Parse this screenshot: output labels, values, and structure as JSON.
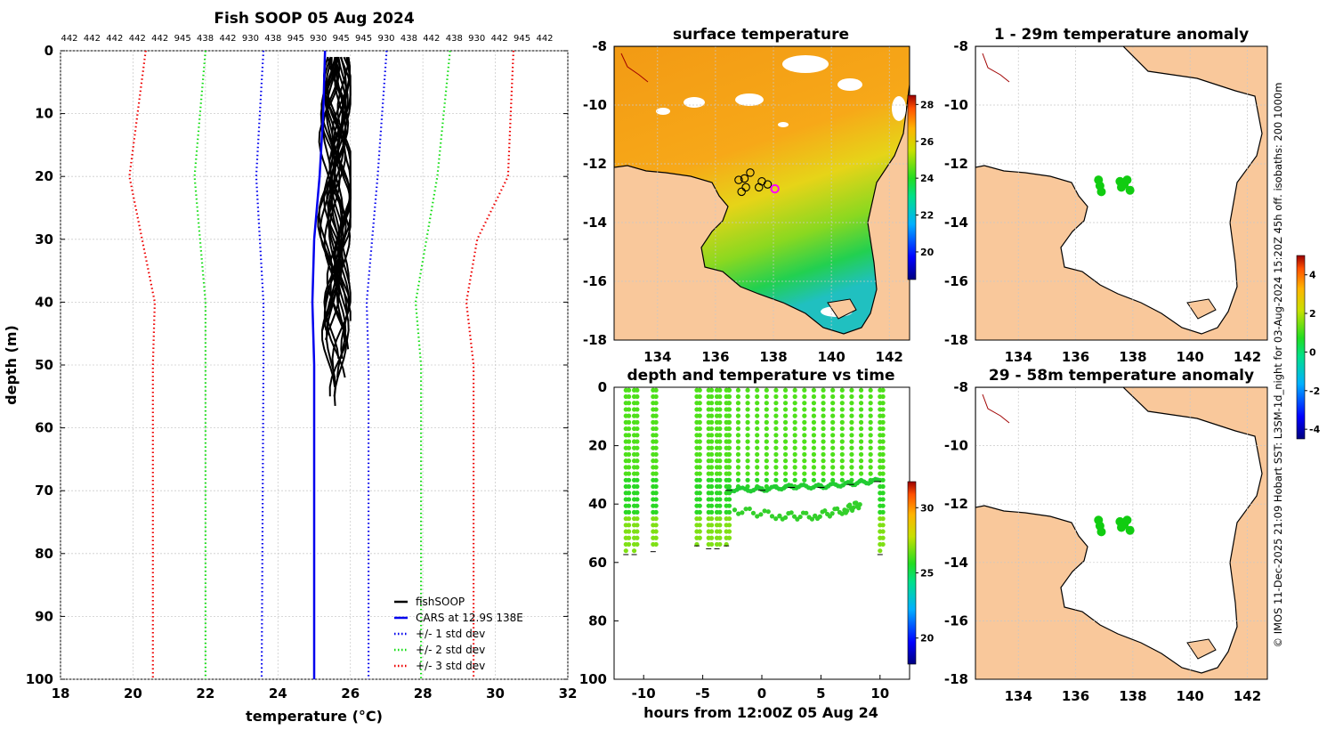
{
  "colors": {
    "fish": "#000000",
    "cars": "#0000ee",
    "std1": "#0000ee",
    "std2": "#11dd11",
    "std3": "#ee0000",
    "land": "#f9c89b",
    "coast": "#000000",
    "grid": "#cccccc",
    "anomaly_obs": "#11cc11",
    "marker": "#ff00ff"
  },
  "chart_data": [
    {
      "id": "profile",
      "type": "line",
      "title": "Fish SOOP 05 Aug 2024",
      "xlabel": "temperature (°C)",
      "ylabel": "depth (m)",
      "xlim": [
        18,
        32
      ],
      "ylim": [
        100,
        0
      ],
      "xticks": [
        "18",
        "20",
        "22",
        "24",
        "26",
        "28",
        "30",
        "32"
      ],
      "yticks": [
        "0",
        "10",
        "20",
        "30",
        "40",
        "50",
        "60",
        "70",
        "80",
        "90",
        "100"
      ],
      "top_labels": [
        "442",
        "442",
        "442",
        "442",
        "442",
        "945",
        "438",
        "442",
        "930",
        "438",
        "945",
        "930",
        "945",
        "945",
        "930",
        "438",
        "442",
        "438",
        "930",
        "442",
        "945",
        "442"
      ],
      "series": [
        {
          "name": "CARS at 12.9S 138E",
          "color_key": "cars",
          "style": "solid",
          "depth": [
            0,
            10,
            20,
            30,
            40,
            50,
            100
          ],
          "temp": [
            25.3,
            25.25,
            25.15,
            25.0,
            24.95,
            25.0,
            25.0
          ]
        },
        {
          "name": "+/- 1 std dev low",
          "color_key": "std1",
          "style": "dot",
          "depth": [
            0,
            20,
            40,
            50,
            100
          ],
          "temp": [
            23.6,
            23.4,
            23.6,
            23.6,
            23.55
          ]
        },
        {
          "name": "+/- 1 std dev high",
          "color_key": "std1",
          "style": "dot",
          "depth": [
            0,
            20,
            40,
            50,
            100
          ],
          "temp": [
            27.0,
            26.75,
            26.45,
            26.5,
            26.5
          ]
        },
        {
          "name": "+/- 2 std dev low",
          "color_key": "std2",
          "style": "dot",
          "depth": [
            0,
            20,
            40,
            50,
            100
          ],
          "temp": [
            22.0,
            21.7,
            22.0,
            22.0,
            22.0
          ]
        },
        {
          "name": "+/- 2 std dev high",
          "color_key": "std2",
          "style": "dot",
          "depth": [
            0,
            20,
            40,
            50,
            100
          ],
          "temp": [
            28.75,
            28.4,
            27.8,
            27.95,
            27.95
          ]
        },
        {
          "name": "+/- 3 std dev low",
          "color_key": "std3",
          "style": "dot",
          "depth": [
            0,
            20,
            40,
            50,
            100
          ],
          "temp": [
            20.35,
            19.9,
            20.6,
            20.55,
            20.55
          ]
        },
        {
          "name": "+/- 3 std dev high",
          "color_key": "std3",
          "style": "dot",
          "depth": [
            0,
            20,
            30,
            40,
            50,
            100
          ],
          "temp": [
            30.5,
            30.35,
            29.5,
            29.2,
            29.4,
            29.4
          ]
        }
      ],
      "fish_depth_range": [
        1,
        58
      ],
      "fish_temp_range": [
        24.95,
        26.0
      ],
      "legend": [
        "fishSOOP",
        "CARS at 12.9S 138E",
        "+/- 1 std dev",
        "+/- 2 std dev",
        "+/- 3 std dev"
      ],
      "legend_position": "bottom-right"
    },
    {
      "id": "sst_map",
      "type": "heatmap",
      "title": "surface temperature",
      "xticks": [
        "134",
        "136",
        "138",
        "140",
        "142"
      ],
      "yticks": [
        "-8",
        "-10",
        "-12",
        "-14",
        "-16",
        "-18"
      ],
      "xlim": [
        132.5,
        142.7
      ],
      "ylim": [
        -18,
        -8
      ],
      "colorbar": {
        "range": [
          18.5,
          28.5
        ],
        "ticks": [
          "20",
          "22",
          "24",
          "26",
          "28"
        ]
      },
      "profile_locations": [
        [
          136.8,
          -12.55
        ],
        [
          136.9,
          -12.95
        ],
        [
          137.05,
          -12.8
        ],
        [
          137.2,
          -12.3
        ],
        [
          137.0,
          -12.5
        ],
        [
          137.6,
          -12.6
        ],
        [
          137.8,
          -12.7
        ],
        [
          137.5,
          -12.8
        ]
      ],
      "latest_location": [
        138.05,
        -12.85
      ]
    },
    {
      "id": "depth_time",
      "type": "scatter",
      "title": "depth and temperature vs time",
      "xlabel": "hours from 12:00Z 05 Aug 24",
      "xticks": [
        "-10",
        "-5",
        "0",
        "5",
        "10"
      ],
      "yticks": [
        "0",
        "20",
        "40",
        "60",
        "80",
        "100"
      ],
      "xlim": [
        -12.5,
        12.5
      ],
      "ylim": [
        100,
        0
      ],
      "colorbar": {
        "range": [
          18,
          32
        ],
        "ticks": [
          "20",
          "25",
          "30"
        ]
      },
      "dives_before": [
        [
          -11.5,
          57
        ],
        [
          -10.8,
          57
        ],
        [
          -9.2,
          56
        ],
        [
          -5.5,
          54
        ],
        [
          -4.5,
          55
        ],
        [
          -3.8,
          55
        ],
        [
          -3.0,
          54
        ],
        [
          10.0,
          57
        ]
      ],
      "dives_bottom": [
        [
          -2.8,
          35
        ],
        [
          0.0,
          35
        ],
        [
          2.5,
          34
        ],
        [
          5.0,
          34
        ],
        [
          7.5,
          33
        ],
        [
          9.8,
          32
        ]
      ],
      "dives_bottom2": [
        [
          -2.3,
          42
        ],
        [
          1.5,
          44
        ],
        [
          4.5,
          44
        ],
        [
          7.0,
          42
        ],
        [
          8.3,
          40
        ]
      ]
    },
    {
      "id": "anom_1",
      "type": "heatmap",
      "title": "1 - 29m temperature anomaly",
      "xticks": [
        "134",
        "136",
        "138",
        "140",
        "142"
      ],
      "yticks": [
        "-8",
        "-10",
        "-12",
        "-14",
        "-16",
        "-18"
      ],
      "xlim": [
        132.5,
        142.7
      ],
      "ylim": [
        -18,
        -8
      ],
      "points": [
        [
          136.8,
          -12.55
        ],
        [
          136.9,
          -12.95
        ],
        [
          136.85,
          -12.75
        ],
        [
          137.55,
          -12.6
        ],
        [
          137.7,
          -12.7
        ],
        [
          137.9,
          -12.9
        ],
        [
          137.6,
          -12.8
        ],
        [
          137.8,
          -12.55
        ]
      ]
    },
    {
      "id": "anom_2",
      "type": "heatmap",
      "title": "29 - 58m temperature anomaly",
      "xticks": [
        "134",
        "136",
        "138",
        "140",
        "142"
      ],
      "yticks": [
        "-8",
        "-10",
        "-12",
        "-14",
        "-16",
        "-18"
      ],
      "xlim": [
        132.5,
        142.7
      ],
      "ylim": [
        -18,
        -8
      ],
      "colorbar": {
        "range": [
          -4.5,
          5
        ],
        "ticks": [
          "4",
          "2",
          "0",
          "-2",
          "-4"
        ]
      },
      "points": [
        [
          136.8,
          -12.55
        ],
        [
          136.9,
          -12.95
        ],
        [
          136.85,
          -12.75
        ],
        [
          137.55,
          -12.6
        ],
        [
          137.7,
          -12.7
        ],
        [
          137.9,
          -12.9
        ],
        [
          137.6,
          -12.8
        ],
        [
          137.8,
          -12.55
        ]
      ]
    }
  ],
  "side_caption": "© IMOS 11-Dec-2025 21:09 Hobart SST: L3SM-1d_night for 03-Aug-2024 15:20Z 45h off. isobaths: 200  1000m"
}
